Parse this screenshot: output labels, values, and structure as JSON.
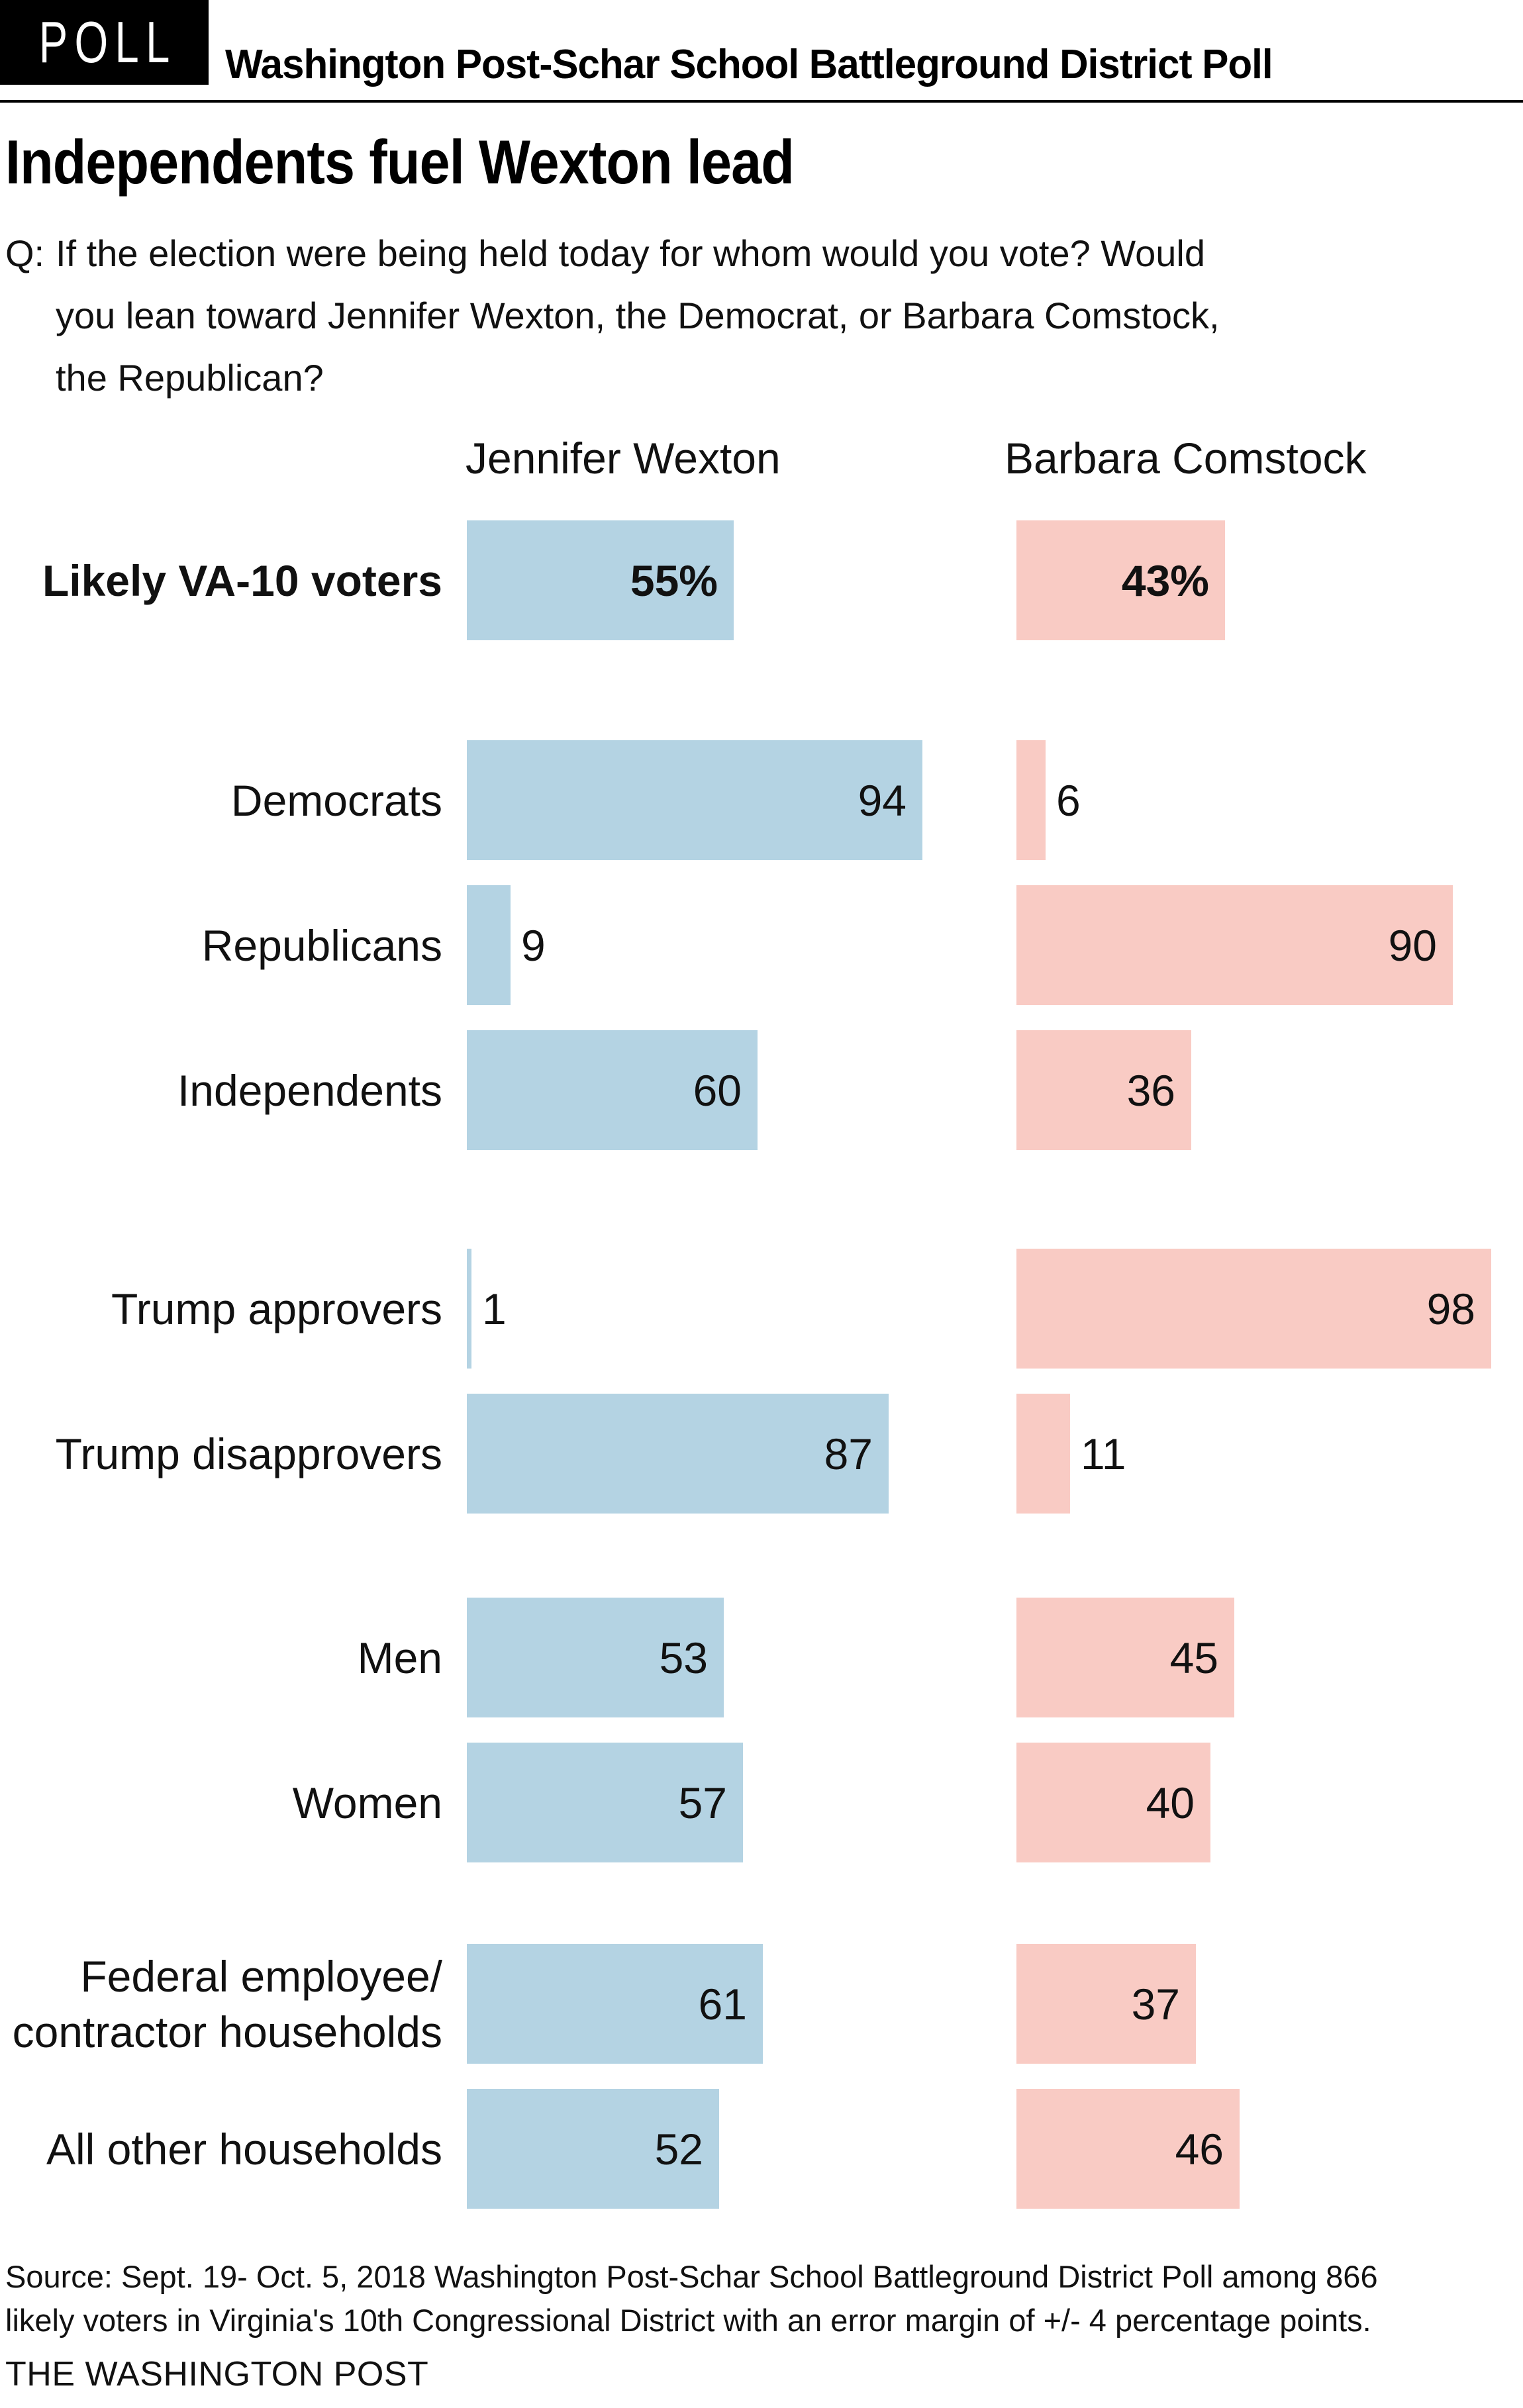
{
  "header": {
    "badge": "POLL",
    "title": "Washington Post-Schar School Battleground District Poll"
  },
  "headline": "Independents fuel Wexton lead",
  "question": {
    "prefix": "Q:",
    "lines": [
      "If the election were being held today for whom would you vote? Would",
      "you lean toward Jennifer Wexton, the Democrat, or Barbara Comstock,",
      "the Republican?"
    ]
  },
  "chart_data": {
    "type": "bar",
    "orientation": "horizontal",
    "unit": "percent",
    "xlim": [
      0,
      100
    ],
    "grid": false,
    "legend_position": "column-headers-top",
    "series": [
      {
        "name": "Jennifer Wexton",
        "color": "#b4d3e3"
      },
      {
        "name": "Barbara Comstock",
        "color": "#f9cbc4"
      }
    ],
    "rows": [
      {
        "label": "Likely VA-10 voters",
        "values": [
          55,
          43
        ],
        "value_labels": [
          "55%",
          "43%"
        ]
      },
      {
        "label": "Democrats",
        "values": [
          94,
          6
        ],
        "value_labels": [
          "94",
          "6"
        ]
      },
      {
        "label": "Republicans",
        "values": [
          9,
          90
        ],
        "value_labels": [
          "9",
          "90"
        ]
      },
      {
        "label": "Independents",
        "values": [
          60,
          36
        ],
        "value_labels": [
          "60",
          "36"
        ]
      },
      {
        "label": "Trump approvers",
        "values": [
          1,
          98
        ],
        "value_labels": [
          "1",
          "98"
        ]
      },
      {
        "label": "Trump disapprovers",
        "values": [
          87,
          11
        ],
        "value_labels": [
          "87",
          "11"
        ]
      },
      {
        "label": "Men",
        "values": [
          53,
          45
        ],
        "value_labels": [
          "53",
          "45"
        ]
      },
      {
        "label": "Women",
        "values": [
          57,
          40
        ],
        "value_labels": [
          "57",
          "40"
        ]
      },
      {
        "label": "Federal employee/\ncontractor households",
        "values": [
          61,
          37
        ],
        "value_labels": [
          "61",
          "37"
        ]
      },
      {
        "label": "All other households",
        "values": [
          52,
          46
        ],
        "value_labels": [
          "52",
          "46"
        ]
      }
    ]
  },
  "footer": {
    "source_lines": [
      "Source: Sept. 19- Oct. 5, 2018 Washington Post-Schar School Battleground District Poll among 866",
      "likely voters in Virginia's 10th Congressional District with an error margin of +/- 4 percentage points."
    ],
    "credit": "THE WASHINGTON POST"
  }
}
